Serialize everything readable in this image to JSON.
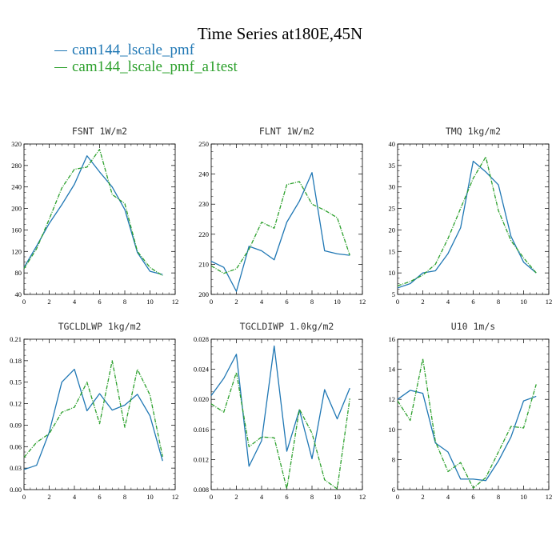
{
  "figure": {
    "title": "Time Series at180E,45N",
    "legend": [
      {
        "label": "cam144_lscale_pmf",
        "color": "#1f77b4"
      },
      {
        "label": "cam144_lscale_pmf_a1test",
        "color": "#2ca02c"
      }
    ]
  },
  "chart_data": [
    {
      "type": "line",
      "title": "FSNT   1W/m2",
      "x": [
        0,
        1,
        2,
        3,
        4,
        5,
        6,
        7,
        8,
        9,
        10,
        11
      ],
      "xlim": [
        0,
        12
      ],
      "xticks": [
        0,
        2,
        4,
        6,
        8,
        10,
        12
      ],
      "ylim": [
        40,
        320
      ],
      "yticks": [
        40,
        80,
        120,
        160,
        200,
        240,
        280,
        320
      ],
      "series": [
        {
          "name": "cam144_lscale_pmf",
          "color": "#1f77b4",
          "dash": "solid",
          "values": [
            90,
            130,
            172,
            207,
            245,
            298,
            268,
            240,
            198,
            118,
            83,
            77
          ]
        },
        {
          "name": "cam144_lscale_pmf_a1test",
          "color": "#2ca02c",
          "dash": "dashed",
          "values": [
            88,
            125,
            180,
            238,
            273,
            277,
            310,
            226,
            209,
            120,
            90,
            75
          ]
        }
      ]
    },
    {
      "type": "line",
      "title": "FLNT   1W/m2",
      "x": [
        0,
        1,
        2,
        3,
        4,
        5,
        6,
        7,
        8,
        9,
        10,
        11
      ],
      "xlim": [
        0,
        12
      ],
      "xticks": [
        0,
        2,
        4,
        6,
        8,
        10,
        12
      ],
      "ylim": [
        200,
        250
      ],
      "yticks": [
        200,
        210,
        220,
        230,
        240,
        250
      ],
      "series": [
        {
          "name": "cam144_lscale_pmf",
          "color": "#1f77b4",
          "dash": "solid",
          "values": [
            211,
            209,
            201,
            216,
            214.5,
            211.5,
            224,
            231,
            240.5,
            214.5,
            213.5,
            213
          ]
        },
        {
          "name": "cam144_lscale_pmf_a1test",
          "color": "#2ca02c",
          "dash": "dashed",
          "values": [
            209.5,
            207,
            208.5,
            215,
            224,
            222,
            236.5,
            237.5,
            230,
            228,
            225.5,
            213
          ]
        }
      ]
    },
    {
      "type": "line",
      "title": "TMQ   1kg/m2",
      "x": [
        0,
        1,
        2,
        3,
        4,
        5,
        6,
        7,
        8,
        9,
        10,
        11
      ],
      "xlim": [
        0,
        12
      ],
      "xticks": [
        0,
        2,
        4,
        6,
        8,
        10,
        12
      ],
      "ylim": [
        5,
        40
      ],
      "yticks": [
        5,
        10,
        15,
        20,
        25,
        30,
        35,
        40
      ],
      "series": [
        {
          "name": "cam144_lscale_pmf",
          "color": "#1f77b4",
          "dash": "solid",
          "values": [
            6.5,
            7.5,
            10,
            10.5,
            14.5,
            20.5,
            36,
            33.5,
            30.5,
            18.5,
            12.5,
            10
          ]
        },
        {
          "name": "cam144_lscale_pmf_a1test",
          "color": "#2ca02c",
          "dash": "dashed",
          "values": [
            7,
            8,
            9.5,
            12,
            18,
            25,
            32,
            37,
            24.5,
            17.5,
            13.5,
            10
          ]
        }
      ]
    },
    {
      "type": "line",
      "title": "TGCLDLWP   1kg/m2",
      "x": [
        0,
        1,
        2,
        3,
        4,
        5,
        6,
        7,
        8,
        9,
        10,
        11
      ],
      "xlim": [
        0,
        12
      ],
      "xticks": [
        0,
        2,
        4,
        6,
        8,
        10,
        12
      ],
      "ylim": [
        0.0,
        0.21
      ],
      "yticks": [
        0.0,
        0.03,
        0.06,
        0.09,
        0.12,
        0.15,
        0.18,
        0.21
      ],
      "ytick_labels": [
        "0.00",
        "0.03",
        "0.06",
        "0.09",
        "0.12",
        "0.15",
        "0.18",
        "0.21"
      ],
      "series": [
        {
          "name": "cam144_lscale_pmf",
          "color": "#1f77b4",
          "dash": "solid",
          "values": [
            0.028,
            0.034,
            0.08,
            0.15,
            0.168,
            0.11,
            0.134,
            0.111,
            0.118,
            0.133,
            0.103,
            0.04
          ]
        },
        {
          "name": "cam144_lscale_pmf_a1test",
          "color": "#2ca02c",
          "dash": "dashed",
          "values": [
            0.045,
            0.066,
            0.078,
            0.108,
            0.115,
            0.15,
            0.092,
            0.18,
            0.087,
            0.168,
            0.132,
            0.046
          ]
        }
      ]
    },
    {
      "type": "line",
      "title": "TGCLDIWP   1.0kg/m2",
      "x": [
        0,
        1,
        2,
        3,
        4,
        5,
        6,
        7,
        8,
        9,
        10,
        11
      ],
      "xlim": [
        0,
        12
      ],
      "xticks": [
        0,
        2,
        4,
        6,
        8,
        10,
        12
      ],
      "ylim": [
        0.008,
        0.028
      ],
      "yticks": [
        0.008,
        0.012,
        0.016,
        0.02,
        0.024,
        0.028
      ],
      "ytick_labels": [
        "0.008",
        "0.012",
        "0.016",
        "0.020",
        "0.024",
        "0.028"
      ],
      "series": [
        {
          "name": "cam144_lscale_pmf",
          "color": "#1f77b4",
          "dash": "solid",
          "values": [
            0.0205,
            0.0228,
            0.026,
            0.0111,
            0.0145,
            0.0271,
            0.0131,
            0.0186,
            0.0121,
            0.0213,
            0.0174,
            0.0215
          ]
        },
        {
          "name": "cam144_lscale_pmf_a1test",
          "color": "#2ca02c",
          "dash": "dashed",
          "values": [
            0.0194,
            0.0183,
            0.0236,
            0.0137,
            0.015,
            0.0149,
            0.0081,
            0.0187,
            0.0155,
            0.0093,
            0.0081,
            0.0201
          ]
        }
      ]
    },
    {
      "type": "line",
      "title": "U10   1m/s",
      "x": [
        0,
        1,
        2,
        3,
        4,
        5,
        6,
        7,
        8,
        9,
        10,
        11
      ],
      "xlim": [
        0,
        12
      ],
      "xticks": [
        0,
        2,
        4,
        6,
        8,
        10,
        12
      ],
      "ylim": [
        6,
        16
      ],
      "yticks": [
        6,
        8,
        10,
        12,
        14,
        16
      ],
      "series": [
        {
          "name": "cam144_lscale_pmf",
          "color": "#1f77b4",
          "dash": "solid",
          "values": [
            12.0,
            12.6,
            12.4,
            9.1,
            8.5,
            6.7,
            6.7,
            6.6,
            7.9,
            9.5,
            11.9,
            12.2
          ]
        },
        {
          "name": "cam144_lscale_pmf_a1test",
          "color": "#2ca02c",
          "dash": "dashed",
          "values": [
            11.9,
            10.6,
            14.7,
            9.2,
            7.2,
            7.8,
            6.1,
            6.8,
            8.5,
            10.2,
            10.1,
            13.0
          ]
        }
      ]
    }
  ]
}
